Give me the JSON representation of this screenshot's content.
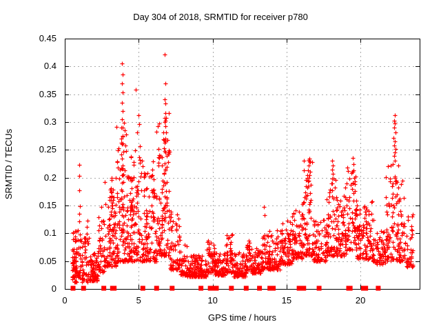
{
  "chart_data": {
    "type": "scatter",
    "title": "Day 304 of 2018, SRMTID for receiver p780",
    "xlabel": "GPS time / hours",
    "ylabel": "SRMTID / TECUs",
    "xlim": [
      0,
      24
    ],
    "ylim": [
      0,
      0.45
    ],
    "xticks": {
      "values": [
        0,
        5,
        10,
        15,
        20
      ],
      "labels": [
        "0",
        "5",
        "10",
        "15",
        "20"
      ]
    },
    "yticks": {
      "values": [
        0,
        0.05,
        0.1,
        0.15,
        0.2,
        0.25,
        0.3,
        0.35,
        0.4,
        0.45
      ],
      "labels": [
        "0",
        "0.05",
        "0.1",
        "0.15",
        "0.2",
        "0.25",
        "0.3",
        "0.35",
        "0.4",
        "0.45"
      ]
    },
    "grid": "dashed",
    "legend": "none",
    "marker": "plus",
    "zero_marker": "filled-square",
    "colors": {
      "marker": "#ff0000",
      "grid": "#a9a9a9",
      "axis": "#000000",
      "text": "#000000",
      "background": "#ffffff"
    },
    "points": [
      [
        0.98,
        0.223
      ],
      [
        1.0,
        0.203
      ],
      [
        0.99,
        0.177
      ],
      [
        1.02,
        0.149
      ],
      [
        0.97,
        0.135
      ],
      [
        1.0,
        0.121
      ],
      [
        1.03,
        0.098
      ],
      [
        3.88,
        0.405
      ],
      [
        3.9,
        0.385
      ],
      [
        3.87,
        0.37
      ],
      [
        3.91,
        0.353
      ],
      [
        3.89,
        0.335
      ],
      [
        3.92,
        0.32
      ],
      [
        3.88,
        0.305
      ],
      [
        3.93,
        0.29
      ],
      [
        3.9,
        0.275
      ],
      [
        3.87,
        0.26
      ],
      [
        3.94,
        0.247
      ],
      [
        3.89,
        0.234
      ],
      [
        3.91,
        0.222
      ],
      [
        4.82,
        0.358
      ],
      [
        4.97,
        0.312
      ],
      [
        5.03,
        0.296
      ],
      [
        4.9,
        0.282
      ],
      [
        5.06,
        0.256
      ],
      [
        4.76,
        0.249
      ],
      [
        6.78,
        0.422
      ],
      [
        6.8,
        0.37
      ],
      [
        6.77,
        0.341
      ],
      [
        6.82,
        0.334
      ],
      [
        6.79,
        0.316
      ],
      [
        6.83,
        0.308
      ],
      [
        6.77,
        0.3
      ],
      [
        6.81,
        0.293
      ],
      [
        6.84,
        0.281
      ],
      [
        6.78,
        0.263
      ],
      [
        6.8,
        0.246
      ],
      [
        13.48,
        0.148
      ],
      [
        13.52,
        0.133
      ],
      [
        16.48,
        0.232
      ],
      [
        16.52,
        0.222
      ],
      [
        16.46,
        0.213
      ],
      [
        16.55,
        0.204
      ],
      [
        16.5,
        0.195
      ],
      [
        16.44,
        0.185
      ],
      [
        16.57,
        0.172
      ],
      [
        18.08,
        0.231
      ],
      [
        18.12,
        0.222
      ],
      [
        18.06,
        0.215
      ],
      [
        18.14,
        0.207
      ],
      [
        18.1,
        0.198
      ],
      [
        18.05,
        0.19
      ],
      [
        19.48,
        0.235
      ],
      [
        19.52,
        0.224
      ],
      [
        19.45,
        0.211
      ],
      [
        19.55,
        0.2
      ],
      [
        19.5,
        0.19
      ],
      [
        22.3,
        0.313
      ],
      [
        22.27,
        0.302
      ],
      [
        22.34,
        0.298
      ],
      [
        22.29,
        0.29
      ],
      [
        22.36,
        0.281
      ],
      [
        22.25,
        0.272
      ],
      [
        22.32,
        0.265
      ],
      [
        22.28,
        0.258
      ],
      [
        22.35,
        0.252
      ],
      [
        22.3,
        0.246
      ],
      [
        22.26,
        0.239
      ],
      [
        22.33,
        0.231
      ],
      [
        22.05,
        0.222
      ],
      [
        22.55,
        0.222
      ]
    ],
    "clusters": [
      [
        0.5,
        0.85,
        0.012,
        0.105,
        70,
        1.6
      ],
      [
        0.85,
        1.15,
        0.02,
        0.11,
        25,
        1.8
      ],
      [
        1.15,
        1.65,
        0.012,
        0.095,
        45,
        2.0
      ],
      [
        1.45,
        1.55,
        0.08,
        0.125,
        5,
        1.0
      ],
      [
        1.65,
        2.25,
        0.015,
        0.065,
        75,
        2.0
      ],
      [
        2.25,
        2.65,
        0.03,
        0.155,
        45,
        1.8
      ],
      [
        2.65,
        3.45,
        0.04,
        0.195,
        95,
        2.0
      ],
      [
        3.1,
        3.25,
        0.12,
        0.21,
        10,
        1.0
      ],
      [
        3.45,
        4.15,
        0.05,
        0.3,
        85,
        2.2
      ],
      [
        3.8,
        4.0,
        0.1,
        0.23,
        18,
        1.2
      ],
      [
        4.15,
        5.3,
        0.05,
        0.24,
        130,
        2.2
      ],
      [
        4.4,
        4.6,
        0.08,
        0.2,
        14,
        1.3
      ],
      [
        5.3,
        6.2,
        0.05,
        0.21,
        95,
        2.0
      ],
      [
        5.85,
        6.05,
        0.12,
        0.255,
        12,
        1.2
      ],
      [
        6.2,
        7.1,
        0.06,
        0.33,
        105,
        2.0
      ],
      [
        6.55,
        6.95,
        0.1,
        0.27,
        22,
        1.3
      ],
      [
        7.1,
        7.8,
        0.035,
        0.14,
        70,
        2.2
      ],
      [
        7.8,
        8.3,
        0.025,
        0.08,
        55,
        2.2
      ],
      [
        8.3,
        9.6,
        0.022,
        0.062,
        155,
        2.4
      ],
      [
        9.6,
        10.15,
        0.03,
        0.09,
        55,
        2.0
      ],
      [
        10.15,
        10.85,
        0.025,
        0.065,
        70,
        2.2
      ],
      [
        10.85,
        11.35,
        0.03,
        0.098,
        55,
        2.0
      ],
      [
        11.35,
        12.25,
        0.022,
        0.068,
        90,
        2.2
      ],
      [
        12.25,
        12.6,
        0.035,
        0.088,
        35,
        2.0
      ],
      [
        12.6,
        13.25,
        0.028,
        0.075,
        65,
        2.2
      ],
      [
        13.25,
        13.8,
        0.035,
        0.098,
        50,
        2.0
      ],
      [
        13.8,
        14.55,
        0.035,
        0.105,
        75,
        2.0
      ],
      [
        14.55,
        15.4,
        0.045,
        0.125,
        85,
        2.0
      ],
      [
        15.4,
        16.15,
        0.055,
        0.155,
        80,
        2.0
      ],
      [
        16.15,
        16.8,
        0.06,
        0.235,
        75,
        1.8
      ],
      [
        16.8,
        17.7,
        0.05,
        0.13,
        80,
        2.1
      ],
      [
        17.7,
        18.45,
        0.06,
        0.2,
        80,
        1.9
      ],
      [
        18.45,
        19.05,
        0.06,
        0.185,
        60,
        1.9
      ],
      [
        19.05,
        19.75,
        0.07,
        0.22,
        70,
        1.8
      ],
      [
        19.75,
        20.45,
        0.055,
        0.15,
        70,
        2.0
      ],
      [
        20.45,
        20.9,
        0.05,
        0.165,
        40,
        1.8
      ],
      [
        20.9,
        21.7,
        0.045,
        0.105,
        55,
        2.0
      ],
      [
        21.7,
        22.45,
        0.05,
        0.225,
        70,
        1.8
      ],
      [
        22.45,
        23.0,
        0.05,
        0.195,
        60,
        1.8
      ],
      [
        23.0,
        23.55,
        0.04,
        0.135,
        45,
        2.0
      ]
    ],
    "zero_value_hours": [
      0.56,
      1.27,
      2.64,
      3.23,
      3.34,
      5.28,
      6.21,
      7.26,
      9.21,
      9.84,
      9.95,
      10.25,
      11.27,
      12.27,
      13.17,
      13.87,
      13.97,
      14.1,
      15.85,
      16.16,
      17.2,
      19.2,
      19.3,
      20.2,
      20.35,
      21.2
    ],
    "seed": 20181104
  }
}
